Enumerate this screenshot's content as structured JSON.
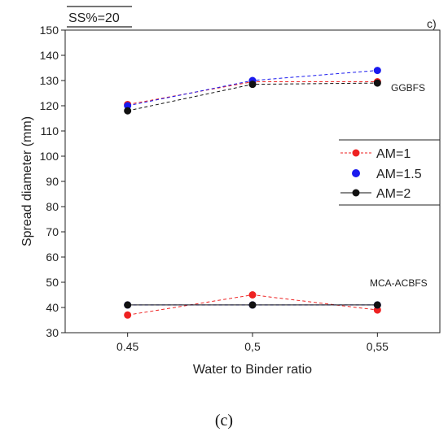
{
  "figure": {
    "badge": "SS%=20",
    "panel_label": "c)",
    "caption": "(c)"
  },
  "chart_data": {
    "type": "line",
    "x": [
      0.45,
      0.5,
      0.55
    ],
    "x_tick_labels": [
      "0.45",
      "0,5",
      "0,55"
    ],
    "xlim": [
      0.425,
      0.575
    ],
    "ylim": [
      30,
      150
    ],
    "y_ticks": [
      30,
      40,
      50,
      60,
      70,
      80,
      90,
      100,
      110,
      120,
      130,
      140,
      150
    ],
    "xlabel": "Water to Binder ratio",
    "ylabel": "Spread diameter (mm)",
    "grid": false,
    "legend_placement": "right",
    "annotations": [
      "GGBFS",
      "MCA-ACBFS"
    ],
    "series": [
      {
        "name": "AM=1",
        "color": "#ee2222",
        "group": "GGBFS",
        "dashed": true,
        "values": [
          120.5,
          129.5,
          129.5
        ]
      },
      {
        "name": "AM=1.5",
        "color": "#1a1aee",
        "group": "GGBFS",
        "dashed": true,
        "values": [
          120,
          130,
          134
        ]
      },
      {
        "name": "AM=2",
        "color": "#111111",
        "group": "GGBFS",
        "dashed": true,
        "values": [
          118,
          128.5,
          129
        ]
      },
      {
        "name": "AM=1",
        "color": "#ee2222",
        "group": "MCA-ACBFS",
        "dashed": true,
        "values": [
          37,
          45,
          39
        ]
      },
      {
        "name": "AM=1.5",
        "color": "#1a1aee",
        "group": "MCA-ACBFS",
        "dashed": true,
        "values": [
          41,
          41,
          41
        ]
      },
      {
        "name": "AM=2",
        "color": "#111111",
        "group": "MCA-ACBFS",
        "dashed": false,
        "values": [
          41,
          41,
          41
        ]
      }
    ]
  }
}
